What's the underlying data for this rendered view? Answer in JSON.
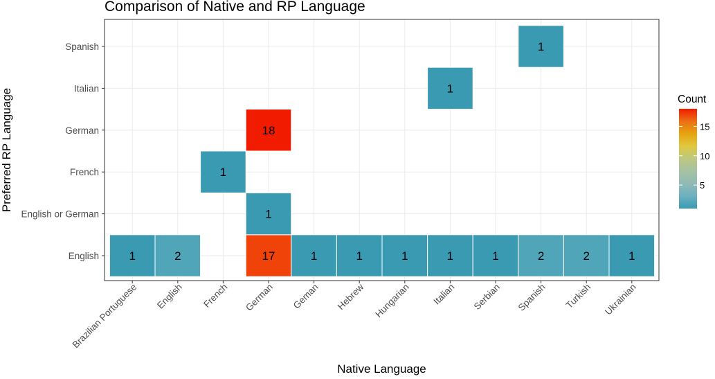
{
  "chart_data": {
    "type": "heatmap",
    "title": "Comparison of Native and RP Language",
    "xlabel": "Native Language",
    "ylabel": "Preferred RP Language",
    "x_categories": [
      "Brazilian Portuguese",
      "English",
      "French",
      "German",
      "Geman",
      "Hebrew",
      "Hungarian",
      "Italian",
      "Serbian",
      "Spanish",
      "Turkish",
      "Ukrainian"
    ],
    "y_categories": [
      "English",
      "English or German",
      "French",
      "German",
      "Italian",
      "Spanish"
    ],
    "cells": [
      {
        "x": "Brazilian Portuguese",
        "y": "English",
        "value": 1
      },
      {
        "x": "English",
        "y": "English",
        "value": 2
      },
      {
        "x": "German",
        "y": "English",
        "value": 17
      },
      {
        "x": "Geman",
        "y": "English",
        "value": 1
      },
      {
        "x": "Hebrew",
        "y": "English",
        "value": 1
      },
      {
        "x": "Hungarian",
        "y": "English",
        "value": 1
      },
      {
        "x": "Italian",
        "y": "English",
        "value": 1
      },
      {
        "x": "Serbian",
        "y": "English",
        "value": 1
      },
      {
        "x": "Spanish",
        "y": "English",
        "value": 2
      },
      {
        "x": "Turkish",
        "y": "English",
        "value": 2
      },
      {
        "x": "Ukrainian",
        "y": "English",
        "value": 1
      },
      {
        "x": "German",
        "y": "English or German",
        "value": 1
      },
      {
        "x": "French",
        "y": "French",
        "value": 1
      },
      {
        "x": "German",
        "y": "German",
        "value": 18
      },
      {
        "x": "Italian",
        "y": "Italian",
        "value": 1
      },
      {
        "x": "Spanish",
        "y": "Spanish",
        "value": 1
      }
    ],
    "legend": {
      "title": "Count",
      "position": "right",
      "range": [
        1,
        18
      ],
      "breaks": [
        5,
        10,
        15
      ],
      "colors": [
        "#3a9ab2",
        "#6bb1c1",
        "#91bab6",
        "#a5c2a3",
        "#bdc881",
        "#e1c83f",
        "#e6a40f",
        "#ec7014",
        "#f11b00"
      ]
    },
    "grid": true,
    "theme": "bw"
  }
}
